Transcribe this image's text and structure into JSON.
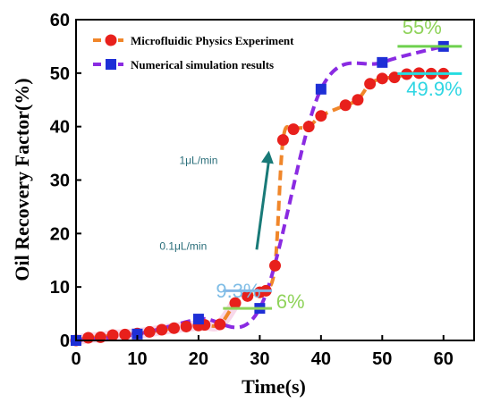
{
  "chart_data": {
    "type": "line",
    "xlabel": "Time(s)",
    "ylabel": "Oil Recovery Factor(%)",
    "xlim": [
      0,
      65
    ],
    "ylim": [
      0,
      60
    ],
    "xticks": [
      0,
      10,
      20,
      30,
      40,
      50,
      60
    ],
    "yticks": [
      0,
      10,
      20,
      30,
      40,
      50,
      60
    ],
    "legend_position": "top-left",
    "series": [
      {
        "name": "Microfluidic Physics Experiment",
        "line_color": "#f0862a",
        "marker_color": "#e8201c",
        "marker": "circle",
        "x": [
          0,
          2,
          4,
          6,
          8,
          10,
          12,
          14,
          16,
          18,
          20,
          21,
          23.5,
          26,
          28,
          30,
          31,
          32.5,
          33.8,
          35.5,
          38,
          40,
          44,
          46,
          48,
          50,
          52,
          54,
          56,
          58,
          60
        ],
        "y": [
          0,
          0.5,
          0.6,
          1.0,
          1.1,
          1.3,
          1.6,
          2.0,
          2.3,
          2.6,
          2.8,
          2.9,
          3.0,
          7.0,
          8.3,
          9.0,
          9.3,
          14.0,
          37.5,
          39.5,
          40.0,
          42.0,
          44.0,
          45.0,
          48.0,
          49.0,
          49.2,
          49.8,
          50.0,
          49.9,
          49.9
        ]
      },
      {
        "name": "Numerical simulation results",
        "line_color": "#8a2be2",
        "marker_color": "#1e2fd6",
        "marker": "square",
        "x": [
          0,
          10,
          20,
          30,
          40,
          50,
          60
        ],
        "y": [
          0,
          1.2,
          4.0,
          6.0,
          47.0,
          52.0,
          55.0
        ]
      }
    ],
    "annotations": [
      {
        "text": "55%",
        "x": 56.5,
        "y": 57.3,
        "color": "#8fd35a",
        "line": {
          "x1": 52.5,
          "x2": 63,
          "y": 55,
          "color": "#6ed04e"
        }
      },
      {
        "text": "49.9%",
        "x": 58.5,
        "y": 45.8,
        "color": "#2fd6e3",
        "line": {
          "x1": 52.5,
          "x2": 63,
          "y": 49.9,
          "color": "#25dce0"
        }
      },
      {
        "text": "9.3%",
        "x": 26.5,
        "y": 8.0,
        "color": "#7fbde6",
        "line": {
          "x1": 24,
          "x2": 32,
          "y": 9.3,
          "color": "#86b7e6"
        }
      },
      {
        "text": "6%",
        "x": 35.0,
        "y": 6.0,
        "color": "#8fd35a",
        "line": {
          "x1": 24,
          "x2": 32,
          "y": 6,
          "color": "#8fd35a"
        }
      },
      {
        "text": "1μL/min",
        "x": 20.0,
        "y": 33.0,
        "color": "#2a6e7a"
      },
      {
        "text": "0.1μL/min",
        "x": 17.5,
        "y": 17.0,
        "color": "#2a6e7a"
      }
    ],
    "arrow": {
      "x1": 29.5,
      "y1": 17.0,
      "x2": 31.5,
      "y2": 35.5,
      "color": "#197a78"
    }
  }
}
